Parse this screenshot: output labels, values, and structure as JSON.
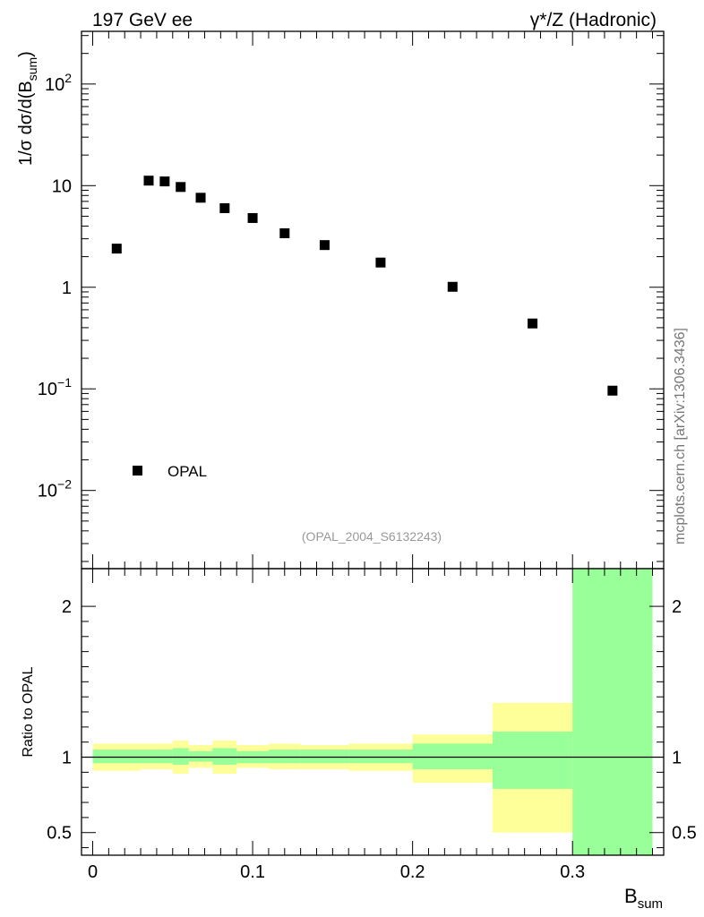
{
  "header": {
    "left": "197 GeV ee",
    "right": "γ*/Z (Hadronic)"
  },
  "watermark": "mcplots.cern.ch [arXiv:1306.3436]",
  "analysis_tag": "(OPAL_2004_S6132243)",
  "colors": {
    "data_marker": "#000000",
    "band_inner": "#99ff99",
    "band_outer": "#ffff99",
    "analysis_tag": "#999999",
    "watermark": "#777777"
  },
  "chart_data": [
    {
      "type": "scatter",
      "panel": "main",
      "ylabel": "1/σ dσ/d(B",
      "ylabel_sub": "sum",
      "ylabel_close": ")",
      "yscale": "log",
      "ylim": [
        0.0017,
        330
      ],
      "xlim": [
        -0.007,
        0.357
      ],
      "yticks": [
        {
          "value": 0.01,
          "base": "10",
          "exp": "−2"
        },
        {
          "value": 0.1,
          "base": "10",
          "exp": "−1"
        },
        {
          "value": 1,
          "base": "1",
          "exp": ""
        },
        {
          "value": 10,
          "base": "10",
          "exp": ""
        },
        {
          "value": 100,
          "base": "10",
          "exp": "2"
        }
      ],
      "legend": {
        "placement": "bottom-left",
        "entries": [
          "OPAL"
        ]
      },
      "series": [
        {
          "name": "OPAL",
          "x": [
            0.015,
            0.035,
            0.045,
            0.055,
            0.0675,
            0.0825,
            0.1,
            0.12,
            0.145,
            0.18,
            0.225,
            0.275,
            0.325
          ],
          "y": [
            2.4,
            11.2,
            11.0,
            9.7,
            7.6,
            6.0,
            4.8,
            3.4,
            2.6,
            1.75,
            1.01,
            0.44,
            0.096
          ]
        }
      ]
    },
    {
      "type": "area",
      "panel": "ratio",
      "ylabel": "Ratio to OPAL",
      "xlabel": "B",
      "xlabel_sub": "sum",
      "ylim": [
        0.35,
        2.25
      ],
      "xlim": [
        -0.007,
        0.357
      ],
      "yticks": [
        0.5,
        1,
        2
      ],
      "ytick_labels": [
        "0.5",
        "1",
        "2"
      ],
      "xticks": [
        0,
        0.1,
        0.2,
        0.3
      ],
      "xtick_labels": [
        "0",
        "0.1",
        "0.2",
        "0.3"
      ],
      "reference_line": 1,
      "bins": [
        {
          "lo": 0.0,
          "hi": 0.03,
          "inner": [
            0.96,
            1.05
          ],
          "outer": [
            0.91,
            1.09
          ]
        },
        {
          "lo": 0.03,
          "hi": 0.04,
          "inner": [
            0.96,
            1.05
          ],
          "outer": [
            0.92,
            1.09
          ]
        },
        {
          "lo": 0.04,
          "hi": 0.05,
          "inner": [
            0.96,
            1.05
          ],
          "outer": [
            0.92,
            1.09
          ]
        },
        {
          "lo": 0.05,
          "hi": 0.06,
          "inner": [
            0.95,
            1.06
          ],
          "outer": [
            0.89,
            1.11
          ]
        },
        {
          "lo": 0.06,
          "hi": 0.075,
          "inner": [
            0.97,
            1.04
          ],
          "outer": [
            0.93,
            1.08
          ]
        },
        {
          "lo": 0.075,
          "hi": 0.09,
          "inner": [
            0.95,
            1.06
          ],
          "outer": [
            0.89,
            1.11
          ]
        },
        {
          "lo": 0.09,
          "hi": 0.11,
          "inner": [
            0.96,
            1.04
          ],
          "outer": [
            0.93,
            1.08
          ]
        },
        {
          "lo": 0.11,
          "hi": 0.13,
          "inner": [
            0.96,
            1.05
          ],
          "outer": [
            0.92,
            1.09
          ]
        },
        {
          "lo": 0.13,
          "hi": 0.16,
          "inner": [
            0.96,
            1.05
          ],
          "outer": [
            0.92,
            1.08
          ]
        },
        {
          "lo": 0.16,
          "hi": 0.2,
          "inner": [
            0.96,
            1.05
          ],
          "outer": [
            0.91,
            1.09
          ]
        },
        {
          "lo": 0.2,
          "hi": 0.25,
          "inner": [
            0.92,
            1.09
          ],
          "outer": [
            0.83,
            1.15
          ]
        },
        {
          "lo": 0.25,
          "hi": 0.3,
          "inner": [
            0.79,
            1.17
          ],
          "outer": [
            0.5,
            1.36
          ]
        },
        {
          "lo": 0.3,
          "hi": 0.35,
          "inner": [
            0.35,
            2.25
          ],
          "outer": [
            0.35,
            2.25
          ]
        }
      ]
    }
  ]
}
